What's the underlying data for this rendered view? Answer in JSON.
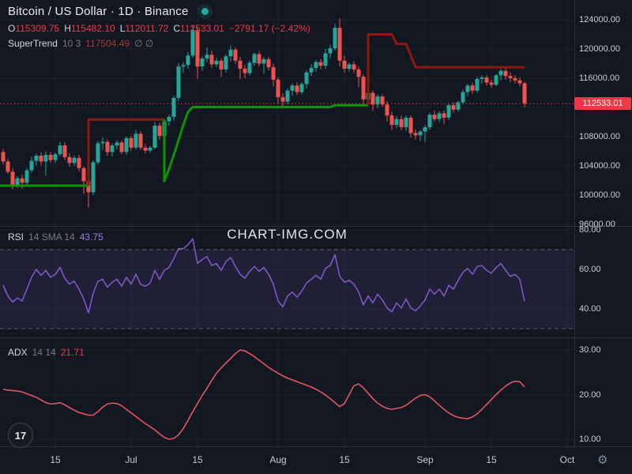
{
  "header": {
    "title": "Bitcoin / US Dollar · 1D · Binance",
    "ohlc": {
      "o_label": "O",
      "o": "115309.75",
      "h_label": "H",
      "h": "115482.10",
      "l_label": "L",
      "l": "112011.72",
      "c_label": "C",
      "c": "112533.01",
      "change": "−2791.17 (−2.42%)"
    },
    "supertrend_legend": {
      "name": "SuperTrend",
      "params": "10 3",
      "value": "117504.49",
      "empty": "∅ ∅"
    }
  },
  "rsi_legend": {
    "name": "RSI",
    "params": "14 SMA 14",
    "value": "43.75"
  },
  "adx_legend": {
    "name": "ADX",
    "params": "14 14",
    "value": "21.71"
  },
  "watermark": "CHART-IMG.COM",
  "price_badge": "112533.01",
  "tv_logo_text": "17",
  "gear_icon": "⚙",
  "theme": {
    "background": "#131722",
    "up": "#26a69a",
    "down": "#ef5350",
    "accent_red": "#f23645",
    "supertrend_up": "#0a9600",
    "supertrend_down": "#8c1a0e",
    "rsi_line": "#7e57c2",
    "rsi_band": "rgba(126,87,194,0.12)",
    "adx_line": "#e25563",
    "grid": "rgba(140,152,180,0.08)",
    "separator": "#2a2e39",
    "dashed_limit": "#6a6e79"
  },
  "axes": {
    "price_ticks": [
      124000,
      120000,
      116000,
      112000,
      108000,
      104000,
      100000,
      96000
    ],
    "rsi_ticks": [
      80,
      60,
      40
    ],
    "adx_ticks": [
      30,
      20,
      10
    ],
    "time_ticks": [
      {
        "day": 11,
        "label": "15"
      },
      {
        "day": 27,
        "label": "Jul"
      },
      {
        "day": 41,
        "label": "15"
      },
      {
        "day": 58,
        "label": "Aug"
      },
      {
        "day": 72,
        "label": "15"
      },
      {
        "day": 89,
        "label": "Sep"
      },
      {
        "day": 103,
        "label": "15"
      },
      {
        "day": 119,
        "label": "Oct"
      }
    ]
  },
  "chart_data": {
    "type": "candlestick",
    "symbol": "Bitcoin / US Dollar",
    "interval": "1D",
    "exchange": "Binance",
    "last_price": 112533.01,
    "price_range": [
      96000,
      124000
    ],
    "rsi_range": [
      20,
      80
    ],
    "adx_range": [
      10,
      30
    ],
    "candles": [
      [
        "Jun 4",
        105900,
        106300,
        104200,
        104600
      ],
      [
        "Jun 5",
        104600,
        105000,
        102900,
        103200
      ],
      [
        "Jun 6",
        103200,
        103700,
        100800,
        101400
      ],
      [
        "Jun 7",
        101400,
        102600,
        101000,
        102300
      ],
      [
        "Jun 8",
        102300,
        102800,
        100900,
        101700
      ],
      [
        "Jun 9",
        101700,
        103700,
        101400,
        103400
      ],
      [
        "Jun 10",
        103400,
        105200,
        103100,
        104700
      ],
      [
        "Jun 11",
        104700,
        105700,
        104100,
        105400
      ],
      [
        "Jun 12",
        105400,
        105800,
        104100,
        104600
      ],
      [
        "Jun 13",
        104600,
        106000,
        102700,
        105500
      ],
      [
        "Jun 14",
        105500,
        105900,
        104400,
        104800
      ],
      [
        "Jun 15",
        104800,
        105800,
        104400,
        105600
      ],
      [
        "Jun 16",
        105600,
        107300,
        105300,
        106800
      ],
      [
        "Jun 17",
        106800,
        107200,
        104800,
        105200
      ],
      [
        "Jun 18",
        105200,
        105700,
        103900,
        104400
      ],
      [
        "Jun 19",
        104400,
        105400,
        104000,
        105100
      ],
      [
        "Jun 20",
        105100,
        105500,
        103300,
        103700
      ],
      [
        "Jun 21",
        103700,
        103900,
        100200,
        101900
      ],
      [
        "Jun 22",
        101900,
        102300,
        98300,
        100400
      ],
      [
        "Jun 23",
        100400,
        104800,
        100000,
        104500
      ],
      [
        "Jun 24",
        104500,
        107400,
        104200,
        107100
      ],
      [
        "Jun 25",
        107100,
        107900,
        106200,
        107300
      ],
      [
        "Jun 26",
        107300,
        107600,
        105400,
        105900
      ],
      [
        "Jun 27",
        105900,
        107100,
        105300,
        106800
      ],
      [
        "Jun 28",
        106800,
        107500,
        106300,
        107200
      ],
      [
        "Jun 29",
        107200,
        107500,
        105600,
        105900
      ],
      [
        "Jun 30",
        105900,
        108000,
        105500,
        107800
      ],
      [
        "Jul 1",
        107800,
        108100,
        106100,
        106500
      ],
      [
        "Jul 2",
        106500,
        108900,
        106200,
        108400
      ],
      [
        "Jul 3",
        108400,
        108700,
        106200,
        106500
      ],
      [
        "Jul 4",
        106500,
        107000,
        105700,
        106100
      ],
      [
        "Jul 5",
        106100,
        106700,
        105800,
        106500
      ],
      [
        "Jul 6",
        106500,
        110000,
        106300,
        109500
      ],
      [
        "Jul 7",
        109500,
        109900,
        107600,
        108100
      ],
      [
        "Jul 8",
        108100,
        110400,
        107900,
        110100
      ],
      [
        "Jul 9",
        110100,
        111000,
        109500,
        110700
      ],
      [
        "Jul 10",
        110700,
        113600,
        110200,
        113300
      ],
      [
        "Jul 11",
        113300,
        118100,
        112900,
        117600
      ],
      [
        "Jul 12",
        117600,
        118200,
        116800,
        117800
      ],
      [
        "Jul 13",
        117800,
        119600,
        117300,
        119100
      ],
      [
        "Jul 14",
        119100,
        123200,
        118800,
        122600
      ],
      [
        "Jul 15",
        122600,
        123000,
        115900,
        117600
      ],
      [
        "Jul 16",
        117600,
        119000,
        117000,
        118700
      ],
      [
        "Jul 17",
        118700,
        120200,
        118200,
        119200
      ],
      [
        "Jul 18",
        119200,
        119800,
        117400,
        117900
      ],
      [
        "Jul 19",
        117900,
        118800,
        117500,
        118400
      ],
      [
        "Jul 20",
        118400,
        118700,
        116200,
        117200
      ],
      [
        "Jul 21",
        117200,
        119300,
        116800,
        119000
      ],
      [
        "Jul 22",
        119000,
        120500,
        118300,
        119900
      ],
      [
        "Jul 23",
        119900,
        120200,
        118000,
        118400
      ],
      [
        "Jul 24",
        118400,
        118900,
        115900,
        117300
      ],
      [
        "Jul 25",
        117300,
        117800,
        116000,
        116700
      ],
      [
        "Jul 26",
        116700,
        118400,
        116400,
        118100
      ],
      [
        "Jul 27",
        118100,
        119500,
        117700,
        119300
      ],
      [
        "Jul 28",
        119300,
        119700,
        117600,
        118000
      ],
      [
        "Jul 29",
        118000,
        118900,
        116600,
        118600
      ],
      [
        "Jul 30",
        118600,
        118900,
        117100,
        117500
      ],
      [
        "Jul 31",
        117500,
        118000,
        114900,
        115800
      ],
      [
        "Aug 1",
        115800,
        116100,
        112600,
        113400
      ],
      [
        "Aug 2",
        113400,
        113900,
        112200,
        112800
      ],
      [
        "Aug 3",
        112800,
        114600,
        112400,
        114300
      ],
      [
        "Aug 4",
        114300,
        115300,
        113600,
        115000
      ],
      [
        "Aug 5",
        115000,
        115400,
        113700,
        114100
      ],
      [
        "Aug 6",
        114100,
        115500,
        113800,
        115200
      ],
      [
        "Aug 7",
        115200,
        117100,
        114600,
        116800
      ],
      [
        "Aug 8",
        116800,
        117900,
        116300,
        117400
      ],
      [
        "Aug 9",
        117400,
        118500,
        116900,
        118200
      ],
      [
        "Aug 10",
        118200,
        118600,
        117200,
        117700
      ],
      [
        "Aug 11",
        117700,
        120000,
        117300,
        119400
      ],
      [
        "Aug 12",
        119400,
        120600,
        118700,
        120100
      ],
      [
        "Aug 13",
        120100,
        123400,
        119800,
        122900
      ],
      [
        "Aug 14",
        122900,
        124200,
        117600,
        118400
      ],
      [
        "Aug 15",
        118400,
        119100,
        116800,
        117300
      ],
      [
        "Aug 16",
        117300,
        118100,
        116900,
        117900
      ],
      [
        "Aug 17",
        117900,
        118300,
        116700,
        117200
      ],
      [
        "Aug 18",
        117200,
        117600,
        114800,
        116200
      ],
      [
        "Aug 19",
        116200,
        116500,
        112300,
        113100
      ],
      [
        "Aug 20",
        113100,
        114400,
        112500,
        114000
      ],
      [
        "Aug 21",
        114000,
        114300,
        111500,
        112400
      ],
      [
        "Aug 22",
        112400,
        113800,
        111900,
        113500
      ],
      [
        "Aug 23",
        113500,
        113800,
        112100,
        112400
      ],
      [
        "Aug 24",
        112400,
        112900,
        110100,
        110900
      ],
      [
        "Aug 25",
        110900,
        111400,
        108900,
        109600
      ],
      [
        "Aug 26",
        109600,
        110800,
        109200,
        110400
      ],
      [
        "Aug 27",
        110400,
        110900,
        108900,
        109300
      ],
      [
        "Aug 28",
        109300,
        110900,
        108800,
        110600
      ],
      [
        "Aug 29",
        110600,
        110900,
        107900,
        108500
      ],
      [
        "Aug 30",
        108500,
        109000,
        107600,
        108200
      ],
      [
        "Aug 31",
        108200,
        108900,
        107400,
        108700
      ],
      [
        "Sep 1",
        108700,
        109600,
        107300,
        109300
      ],
      [
        "Sep 2",
        109300,
        111300,
        108900,
        111000
      ],
      [
        "Sep 3",
        111000,
        111600,
        110100,
        110400
      ],
      [
        "Sep 4",
        110400,
        111500,
        110000,
        111200
      ],
      [
        "Sep 5",
        111200,
        111600,
        109700,
        110600
      ],
      [
        "Sep 6",
        110600,
        112600,
        110300,
        112300
      ],
      [
        "Sep 7",
        112300,
        112700,
        111300,
        111700
      ],
      [
        "Sep 8",
        111700,
        112900,
        111400,
        112700
      ],
      [
        "Sep 9",
        112700,
        114400,
        112400,
        114100
      ],
      [
        "Sep 10",
        114100,
        115200,
        113600,
        115000
      ],
      [
        "Sep 11",
        115000,
        115400,
        113900,
        114300
      ],
      [
        "Sep 12",
        114300,
        116200,
        114000,
        115900
      ],
      [
        "Sep 13",
        115900,
        116400,
        115200,
        116100
      ],
      [
        "Sep 14",
        116100,
        116400,
        115000,
        115400
      ],
      [
        "Sep 15",
        115400,
        115800,
        114700,
        115100
      ],
      [
        "Sep 16",
        115100,
        116600,
        114900,
        116400
      ],
      [
        "Sep 17",
        116400,
        117300,
        115700,
        117000
      ],
      [
        "Sep 18",
        117000,
        117500,
        115800,
        116300
      ],
      [
        "Sep 19",
        116300,
        116800,
        115500,
        116000
      ],
      [
        "Sep 20",
        116000,
        116400,
        115300,
        115700
      ],
      [
        "Sep 21",
        115700,
        116100,
        114900,
        115310
      ],
      [
        "Sep 22",
        115310,
        115482,
        112012,
        112533
      ]
    ],
    "supertrend": {
      "period": 10,
      "multiplier": 3,
      "last_value": 117504.49,
      "segments": [
        {
          "dir": "up",
          "points": [
            [
              -0.7,
              101300
            ],
            [
              18,
              101300
            ]
          ]
        },
        {
          "dir": "down",
          "points": [
            [
              18,
              101300
            ],
            [
              18,
              110350
            ],
            [
              34,
              110350
            ]
          ]
        },
        {
          "dir": "up",
          "points": [
            [
              34,
              110350
            ],
            [
              34,
              101900
            ],
            [
              35,
              103600
            ],
            [
              36,
              105500
            ],
            [
              37,
              107500
            ],
            [
              38,
              109600
            ],
            [
              39,
              111400
            ],
            [
              40,
              112050
            ],
            [
              69,
              112050
            ],
            [
              70,
              112300
            ],
            [
              77,
              112300
            ]
          ]
        },
        {
          "dir": "down",
          "points": [
            [
              77,
              112300
            ],
            [
              77,
              122000
            ],
            [
              82,
              122000
            ],
            [
              83,
              120700
            ],
            [
              85,
              120700
            ],
            [
              87,
              117500
            ],
            [
              110,
              117500
            ]
          ]
        }
      ]
    },
    "rsi": {
      "period": 14,
      "sma_period": 14,
      "last": 43.75,
      "upper_band": 70,
      "lower_band": 30,
      "values": [
        52,
        46.5,
        43.5,
        45.5,
        44,
        50,
        56,
        60,
        57,
        59.5,
        56,
        57.5,
        61,
        55.5,
        52.5,
        54,
        50,
        45,
        38,
        48,
        54,
        55,
        51,
        53.5,
        55,
        51.5,
        56,
        52.5,
        57.5,
        52.5,
        51.5,
        53,
        59.5,
        55,
        59.5,
        61,
        65.5,
        70.5,
        70.5,
        72.5,
        75.5,
        63,
        65,
        66.5,
        62,
        63,
        59.5,
        64,
        66,
        61.5,
        57.5,
        55.5,
        59,
        61.5,
        59,
        61,
        57.5,
        52.5,
        44,
        41,
        46.5,
        48.5,
        46,
        49,
        53,
        55,
        57,
        55,
        60.5,
        62,
        67.5,
        56.5,
        53.5,
        54.5,
        52.5,
        48.5,
        42,
        46.5,
        43,
        47.5,
        44.5,
        40.5,
        38.5,
        43,
        40.5,
        45,
        40.5,
        39,
        41.5,
        44.5,
        50,
        47.5,
        50,
        46.5,
        52,
        50,
        54.5,
        58.5,
        60.5,
        57.5,
        61.5,
        62,
        59.5,
        58,
        61,
        63,
        59.5,
        56.5,
        57.5,
        55,
        43.75
      ]
    },
    "adx": {
      "smoothing": 14,
      "di_length": 14,
      "last": 21.71,
      "values": [
        21.2,
        21,
        20.9,
        20.8,
        20.6,
        20.2,
        19.8,
        19.4,
        18.8,
        18.2,
        17.9,
        18,
        18.2,
        17.7,
        17.1,
        16.5,
        16,
        15.7,
        15.4,
        15.4,
        16.2,
        17.2,
        17.9,
        18.1,
        18,
        17.5,
        16.7,
        15.9,
        15.1,
        14.3,
        13.5,
        12.8,
        12.1,
        11.2,
        10.4,
        10,
        10.2,
        11,
        12.4,
        14.2,
        16.2,
        18,
        19.8,
        21.4,
        23.2,
        24.8,
        26,
        27.1,
        28.1,
        29.2,
        30,
        29.8,
        29.2,
        28.5,
        27.7,
        26.9,
        26.1,
        25.4,
        24.8,
        24.2,
        23.7,
        23.3,
        22.9,
        22.5,
        22.1,
        21.7,
        21.2,
        20.6,
        19.9,
        19.1,
        18.2,
        17.3,
        18,
        20,
        22,
        22.4,
        21.5,
        20.3,
        19.1,
        18.1,
        17.4,
        16.9,
        16.7,
        16.9,
        17.1,
        17.6,
        18.4,
        19.2,
        19.8,
        20,
        19.5,
        18.6,
        17.6,
        16.7,
        15.9,
        15.3,
        14.9,
        14.7,
        14.6,
        15,
        15.7,
        16.7,
        17.8,
        18.9,
        20,
        21,
        21.9,
        22.6,
        23,
        22.9,
        21.71
      ]
    }
  }
}
